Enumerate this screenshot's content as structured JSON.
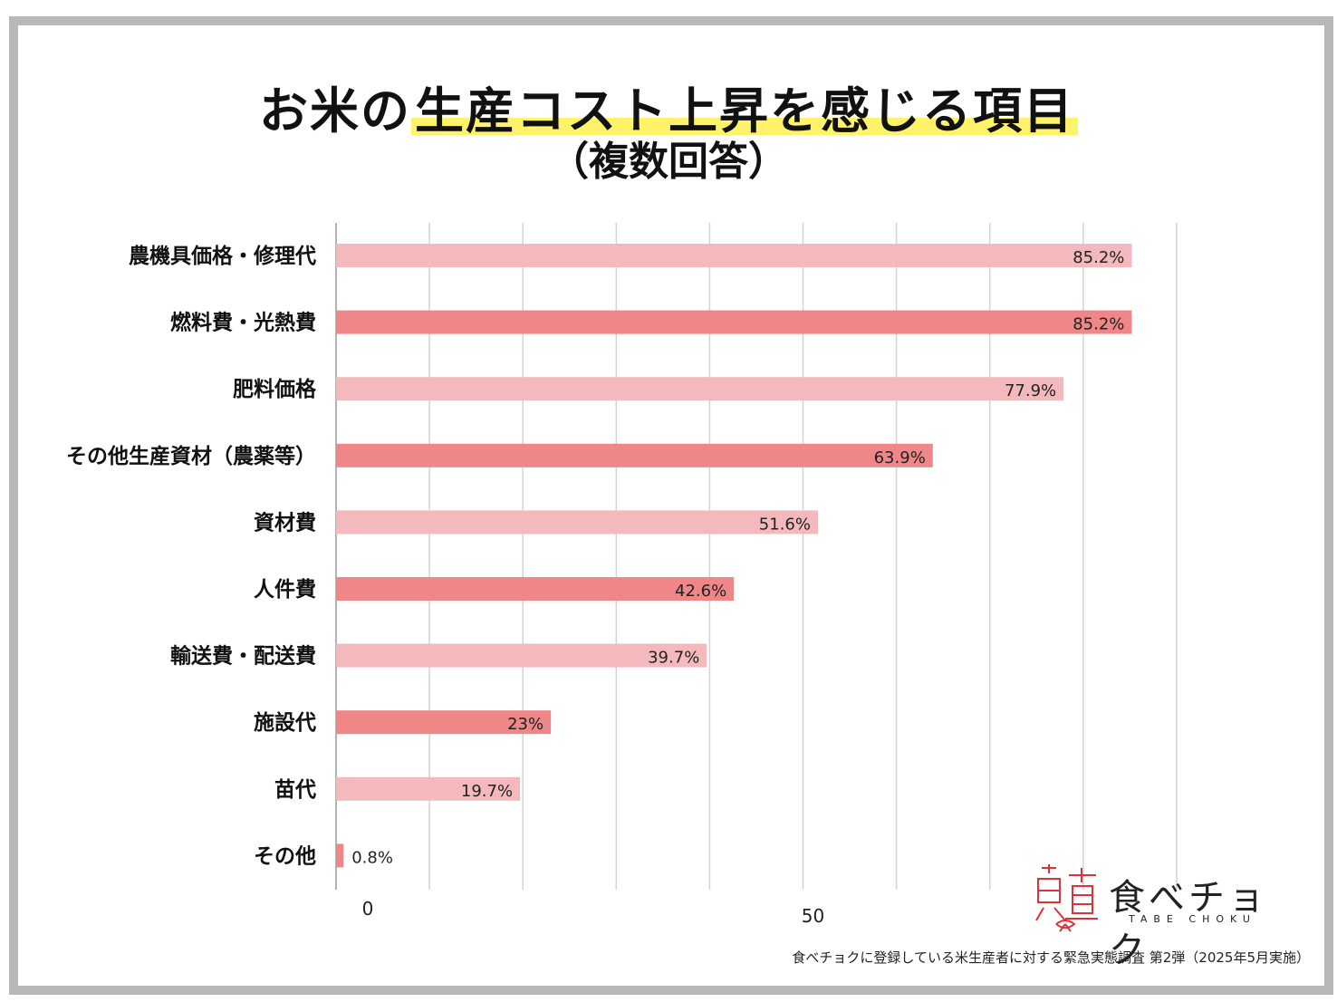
{
  "title": {
    "prefix": "お米の",
    "highlight": "生産コスト上昇を感じる項目",
    "subtitle": "（複数回答）"
  },
  "chart_data": {
    "type": "bar",
    "orientation": "horizontal",
    "categories": [
      "農機具価格・修理代",
      "燃料費・光熱費",
      "肥料価格",
      "その他生産資材（農薬等）",
      "資材費",
      "人件費",
      "輸送費・配送費",
      "施設代",
      "苗代",
      "その他"
    ],
    "values": [
      85.2,
      85.2,
      77.9,
      63.9,
      51.6,
      42.6,
      39.7,
      23,
      19.7,
      0.8
    ],
    "value_labels": [
      "85.2%",
      "85.2%",
      "77.9%",
      "63.9%",
      "51.6%",
      "42.6%",
      "39.7%",
      "23%",
      "19.7%",
      "0.8%"
    ],
    "xlim": [
      0,
      90
    ],
    "x_ticks": [
      {
        "value": 0,
        "label": "0"
      },
      {
        "value": 50,
        "label": "50"
      }
    ],
    "grid": true,
    "colors": {
      "light": "#f4b9bc",
      "dark": "#ef8687"
    }
  },
  "logo": {
    "text": "食べチョク",
    "sub": "TABE CHOKU"
  },
  "footnote": "食べチョクに登録している米生産者に対する緊急実態調査 第2弾（2025年5月実施）"
}
